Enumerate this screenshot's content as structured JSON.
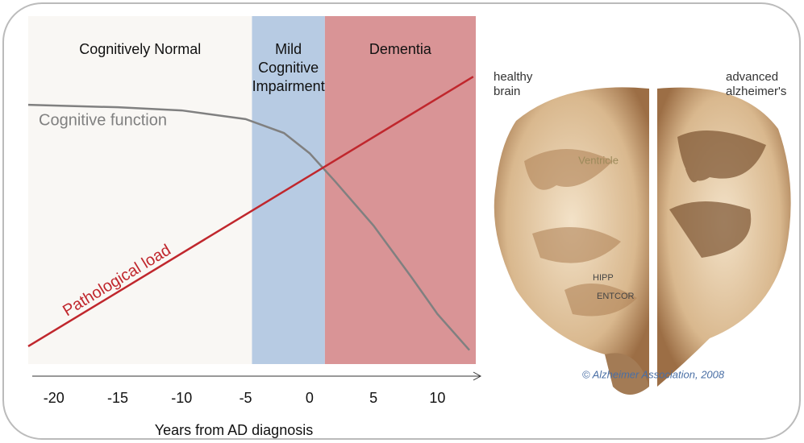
{
  "chart_data": {
    "type": "line",
    "xlabel": "Years from AD diagnosis",
    "xlim": [
      -22,
      13
    ],
    "ylim": [
      0,
      100
    ],
    "xticks": [
      -20,
      -15,
      -10,
      -5,
      0,
      5,
      10
    ],
    "regions": [
      {
        "label": [
          "Cognitively Normal"
        ],
        "start": -22,
        "end": -4.5,
        "color": "#f9f7f4"
      },
      {
        "label": [
          "Mild",
          "Cognitive",
          "Impairment"
        ],
        "start": -4.5,
        "end": 1.2,
        "color": "#b7cbe3"
      },
      {
        "label": [
          "Dementia"
        ],
        "start": 1.2,
        "end": 13,
        "color": "#d99496"
      }
    ],
    "series": [
      {
        "name": "Cognitive function",
        "color": "#808080",
        "x": [
          -22,
          -15,
          -10,
          -5,
          -2,
          0,
          2,
          5,
          8,
          10,
          12.5
        ],
        "values": [
          74.5,
          73.8,
          72.9,
          70.4,
          66.4,
          60.6,
          52.5,
          39.8,
          24.8,
          14.4,
          4.0
        ]
      },
      {
        "name": "Pathological load",
        "color": "#c0272d",
        "x": [
          -22,
          12.8
        ],
        "values": [
          5.1,
          82.6
        ]
      }
    ]
  },
  "image_labels": {
    "healthy": [
      "healthy",
      "brain"
    ],
    "advanced": [
      "advanced",
      "alzheimer's"
    ],
    "ventricle": "Ventricle",
    "hipp": "HIPP",
    "entcor": "ENTCOR",
    "credit": "© Alzheimer Association, 2008"
  }
}
